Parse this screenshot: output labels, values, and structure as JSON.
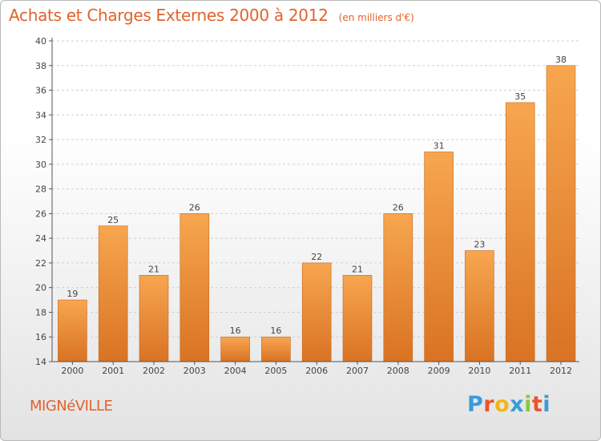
{
  "header": {
    "title": "Achats et Charges Externes 2000 à 2012",
    "subtitle": "(en milliers d'€)"
  },
  "footer": {
    "commune": "MIGNéVILLE",
    "brand": {
      "letters": [
        "P",
        "r",
        "o",
        "x",
        "i",
        "t",
        "i"
      ],
      "colors": [
        "#3a9bd9",
        "#e8562a",
        "#f2b515",
        "#3a9bd9",
        "#8cc63f",
        "#e8562a",
        "#3a9bd9"
      ]
    }
  },
  "chart_data": {
    "type": "bar",
    "categories": [
      "2000",
      "2001",
      "2002",
      "2003",
      "2004",
      "2005",
      "2006",
      "2007",
      "2008",
      "2009",
      "2010",
      "2011",
      "2012"
    ],
    "values": [
      19,
      25,
      21,
      26,
      16,
      16,
      22,
      21,
      26,
      31,
      23,
      35,
      38
    ],
    "data_labels": [
      "19",
      "25",
      "21",
      "26",
      "16",
      "16",
      "22",
      "21",
      "26",
      "31",
      "23",
      "35",
      "38"
    ],
    "ylim": [
      14,
      40
    ],
    "yticks": [
      14,
      16,
      18,
      20,
      22,
      24,
      26,
      28,
      30,
      32,
      34,
      36,
      38,
      40
    ],
    "grid": true,
    "colors": {
      "bar_light": "#f7a64f",
      "bar_dark": "#d97323",
      "axis": "#555555",
      "grid": "#d0d0d0",
      "label": "#444444"
    }
  }
}
